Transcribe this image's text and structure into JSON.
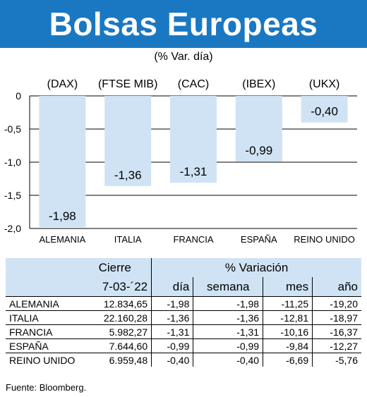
{
  "header": {
    "title": "Bolsas Europeas",
    "subtitle": "(% Var. día)"
  },
  "colors": {
    "banner": "#1a78c2",
    "bars": "#cfe3f4",
    "table_header": "#cfe3f4"
  },
  "chart_data": {
    "type": "bar",
    "index_labels": [
      "(DAX)",
      "(FTSE MIB)",
      "(CAC)",
      "(IBEX)",
      "(UKX)"
    ],
    "categories": [
      "ALEMANIA",
      "ITALIA",
      "FRANCIA",
      "ESPAÑA",
      "REINO UNIDO"
    ],
    "values": [
      -1.98,
      -1.36,
      -1.31,
      -0.99,
      -0.4
    ],
    "value_labels": [
      "-1,98",
      "-1,36",
      "-1,31",
      "-0,99",
      "-0,40"
    ],
    "y_ticks": [
      "0",
      "-0,5",
      "-1,0",
      "-1,5",
      "-2,0"
    ],
    "y_tick_values": [
      0,
      -0.5,
      -1.0,
      -1.5,
      -2.0
    ],
    "ylim": [
      -2.0,
      0
    ],
    "grid": true
  },
  "table": {
    "group_headers": {
      "cierre": "Cierre",
      "variacion": "% Variación"
    },
    "date": "7-03-´22",
    "columns": [
      "día",
      "semana",
      "mes",
      "año"
    ],
    "rows": [
      {
        "name": "ALEMANIA",
        "cierre": "12.834,65",
        "dia": "-1,98",
        "semana": "-1,98",
        "mes": "-11,25",
        "ano": "-19,20"
      },
      {
        "name": "ITALIA",
        "cierre": "22.160,28",
        "dia": "-1,36",
        "semana": "-1,36",
        "mes": "-12,81",
        "ano": "-18,97"
      },
      {
        "name": "FRANCIA",
        "cierre": "5.982,27",
        "dia": "-1,31",
        "semana": "-1,31",
        "mes": "-10,16",
        "ano": "-16,37"
      },
      {
        "name": "ESPAÑA",
        "cierre": "7.644,60",
        "dia": "-0,99",
        "semana": "-0,99",
        "mes": "-9,84",
        "ano": "-12,27"
      },
      {
        "name": "REINO UNIDO",
        "cierre": "6.959,48",
        "dia": "-0,40",
        "semana": "-0,40",
        "mes": "-6,69",
        "ano": "-5,76"
      }
    ]
  },
  "source": "Fuente: Bloomberg."
}
